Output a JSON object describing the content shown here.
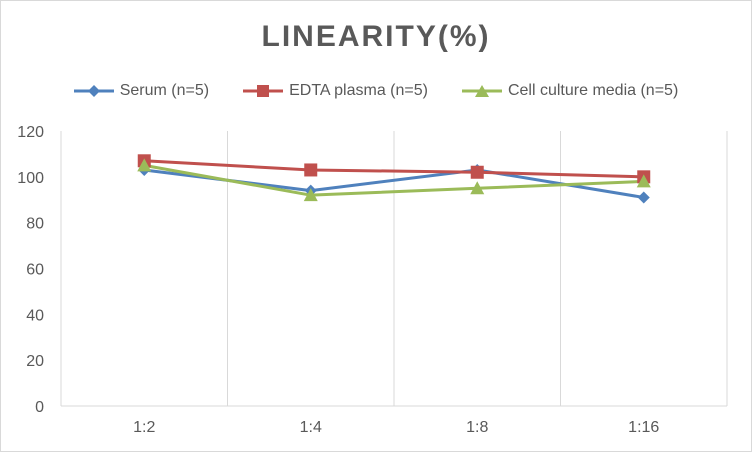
{
  "chart_data": {
    "type": "line",
    "title": "LINEARITY(%)",
    "categories": [
      "1:2",
      "1:4",
      "1:8",
      "1:16"
    ],
    "ylim": [
      0,
      120
    ],
    "yticks": [
      0,
      20,
      40,
      60,
      80,
      100,
      120
    ],
    "grid": "vertical",
    "legend_position": "top",
    "series": [
      {
        "name": "Serum (n=5)",
        "color": "#4f81bd",
        "marker": "diamond",
        "values": [
          103,
          94,
          103,
          91
        ]
      },
      {
        "name": "EDTA plasma (n=5)",
        "color": "#c0504d",
        "marker": "square",
        "values": [
          107,
          103,
          102,
          100
        ]
      },
      {
        "name": "Cell culture media (n=5)",
        "color": "#9bbb59",
        "marker": "triangle",
        "values": [
          105,
          92,
          95,
          98
        ]
      }
    ]
  }
}
